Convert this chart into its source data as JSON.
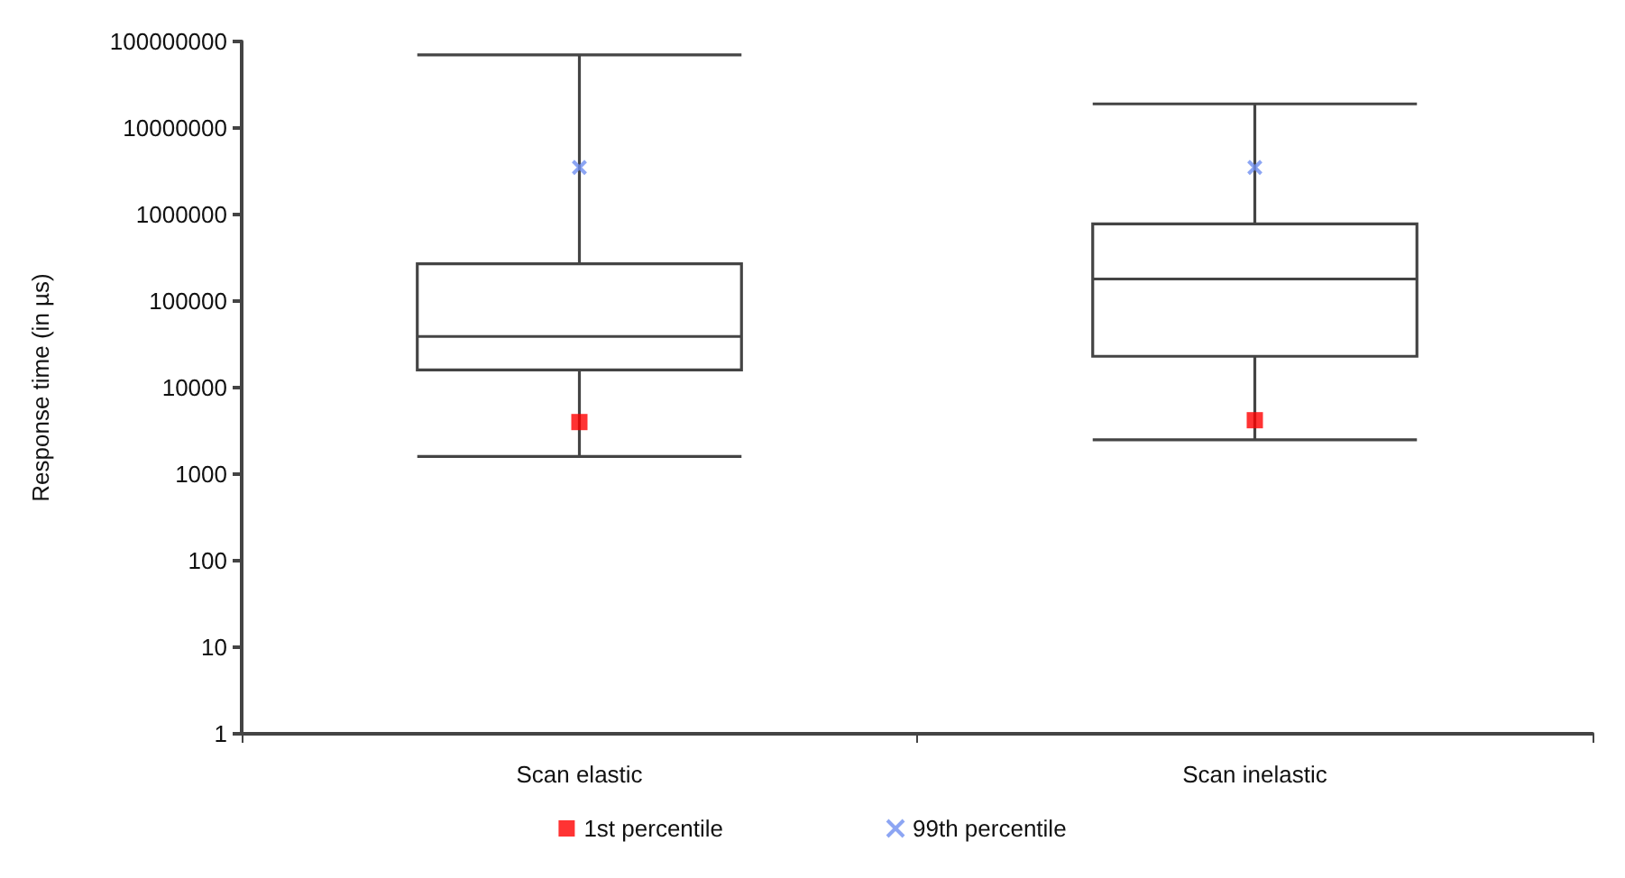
{
  "chart_data": {
    "type": "box",
    "ylabel": "Response time (in µs)",
    "categories": [
      "Scan elastic",
      "Scan inelastic"
    ],
    "log": true,
    "ylim": [
      1,
      100000000
    ],
    "yticks": [
      1,
      10,
      100,
      1000,
      10000,
      100000,
      1000000,
      10000000,
      100000000
    ],
    "grid": false,
    "legend": "bottom",
    "boxes": [
      {
        "low": 1600,
        "q1": 16000,
        "median": 39000,
        "q3": 270000,
        "high": 70000000
      },
      {
        "low": 2500,
        "q1": 23000,
        "median": 180000,
        "q3": 780000,
        "high": 19000000
      }
    ],
    "series": [
      {
        "type": "scatter",
        "name": "1st percentile",
        "color": "#ff0000",
        "marker": "square",
        "x": [
          "Scan elastic",
          "Scan inelastic"
        ],
        "values": [
          4000,
          4200
        ]
      },
      {
        "type": "scatter",
        "name": "99th percentile",
        "color": "#6f8ff0",
        "marker": "cross",
        "x": [
          "Scan elastic",
          "Scan inelastic"
        ],
        "values": [
          3500000,
          3500000
        ]
      }
    ]
  }
}
